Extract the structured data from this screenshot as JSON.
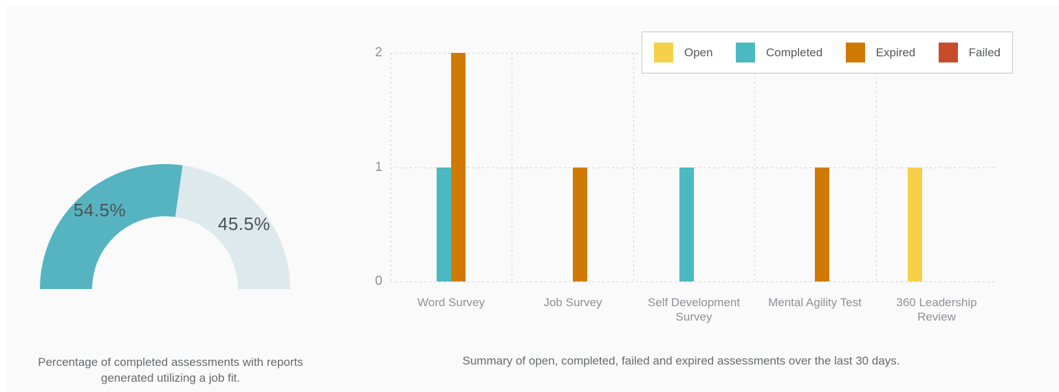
{
  "theme": {
    "panel_background": "#fafafa",
    "gridline_color": "#cfd0d2",
    "axis_text_color": "#8e9094",
    "caption_text_color": "#67696d",
    "legend_text_color": "#55575c",
    "gauge_label_text_color": "#4f5156",
    "legend_border_color": "#c2c5c6"
  },
  "chart_data": [
    {
      "id": "completion-gauge",
      "type": "pie",
      "shape": "half-donut",
      "slices": [
        {
          "name": "completed",
          "label": "54.5%",
          "value": 54.5,
          "color": "#55b4c0"
        },
        {
          "name": "remaining",
          "label": "45.5%",
          "value": 45.5,
          "color": "#dde9ec"
        }
      ],
      "caption": "Percentage of completed assessments with reports generated utilizing a job fit."
    },
    {
      "id": "assessment-summary-bars",
      "type": "bar",
      "title": "",
      "categories": [
        "Word Survey",
        "Job Survey",
        "Self Development Survey",
        "Mental Agility Test",
        "360 Leadership Review"
      ],
      "series": [
        {
          "name": "Open",
          "color": "#f6d049",
          "values": [
            0,
            0,
            0,
            0,
            1
          ]
        },
        {
          "name": "Completed",
          "color": "#4bb9c1",
          "values": [
            1,
            0,
            1,
            0,
            0
          ]
        },
        {
          "name": "Expired",
          "color": "#d07a05",
          "values": [
            2,
            1,
            0,
            1,
            0
          ]
        },
        {
          "name": "Failed",
          "color": "#c74b28",
          "values": [
            0,
            0,
            0,
            0,
            0
          ]
        }
      ],
      "yticks": [
        0,
        1,
        2
      ],
      "ylim": [
        0,
        2
      ],
      "grid": "dashed",
      "legend_position": "top-right",
      "caption": "Summary of open, completed, failed and expired assessments over the last 30 days."
    }
  ]
}
